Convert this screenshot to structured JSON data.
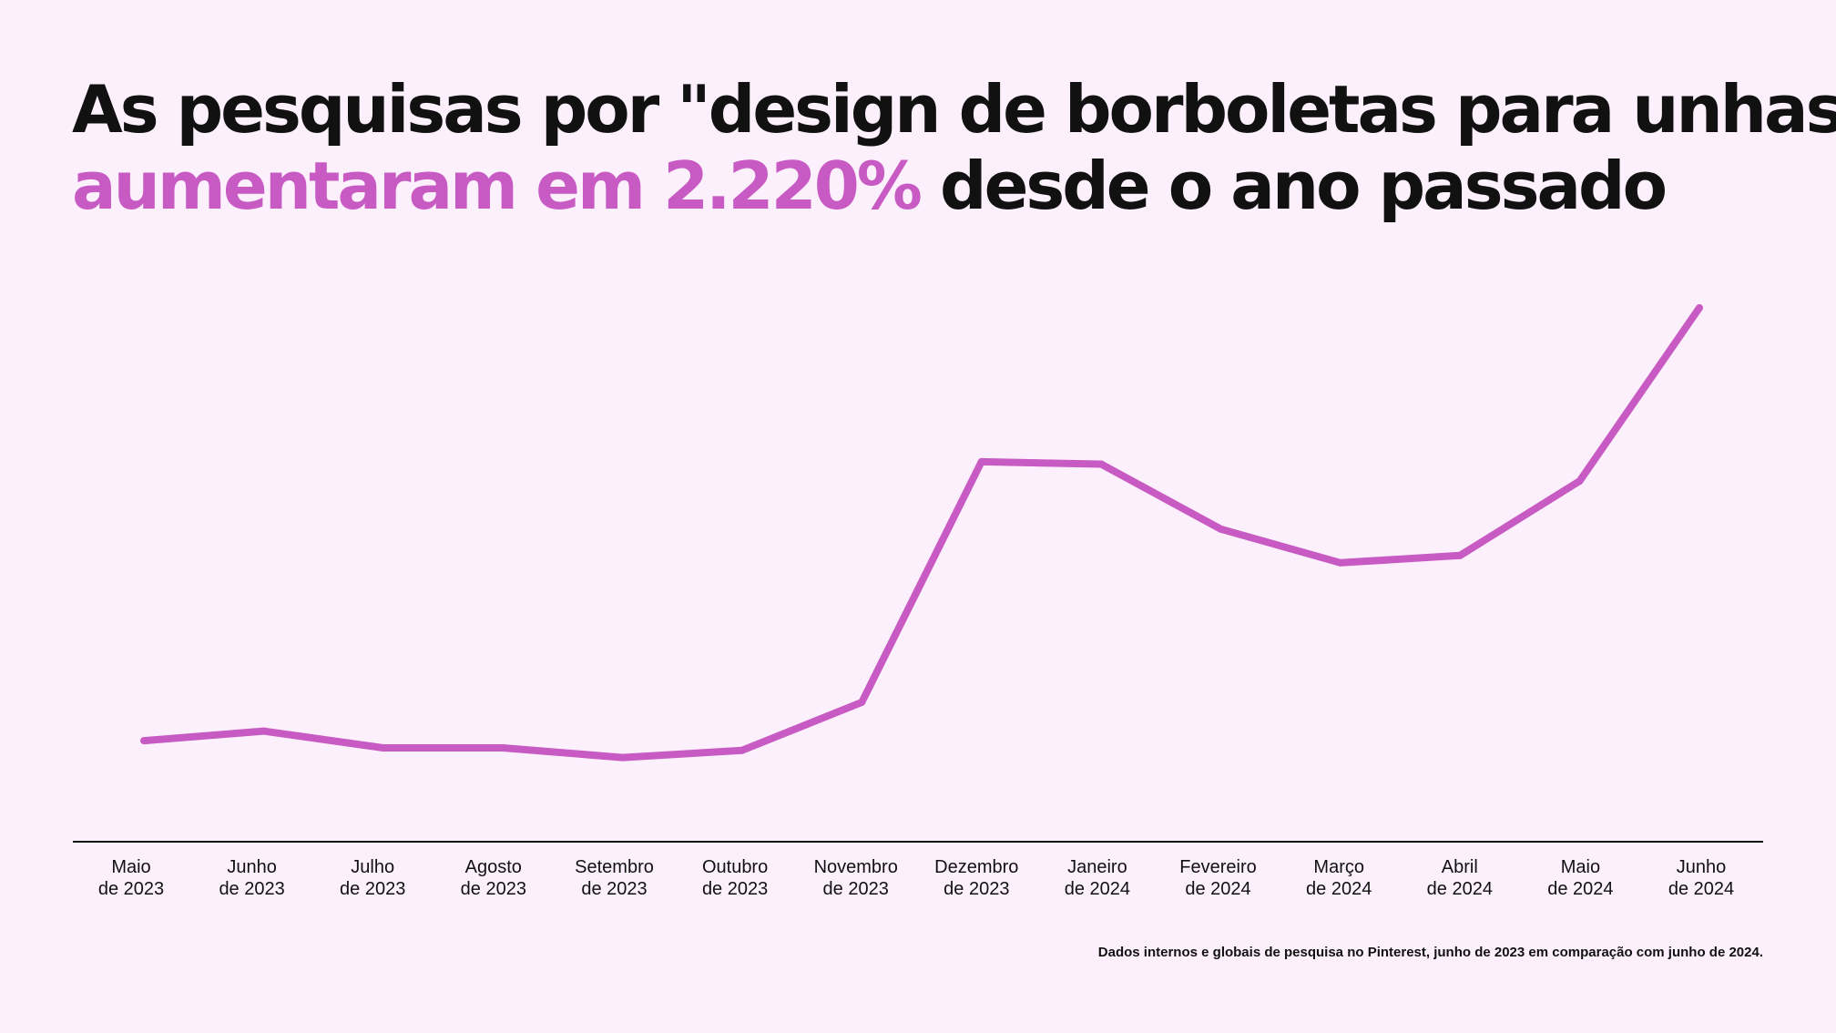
{
  "title": {
    "line1": "As pesquisas por \"design de borboletas para unhas\"",
    "line2_highlight": "aumentaram em 2.220%",
    "line2_rest": "desde o ano passado"
  },
  "colors": {
    "background": "#fdf0fd",
    "accent": "#c85bc3",
    "text": "#111111",
    "axis": "#111111"
  },
  "chart_data": {
    "type": "line",
    "categories": [
      [
        "Maio",
        "de 2023"
      ],
      [
        "Junho",
        "de 2023"
      ],
      [
        "Julho",
        "de 2023"
      ],
      [
        "Agosto",
        "de 2023"
      ],
      [
        "Setembro",
        "de 2023"
      ],
      [
        "Outubro",
        "de 2023"
      ],
      [
        "Novembro",
        "de 2023"
      ],
      [
        "Dezembro",
        "de 2023"
      ],
      [
        "Janeiro",
        "de 2024"
      ],
      [
        "Fevereiro",
        "de 2024"
      ],
      [
        "Março",
        "de 2024"
      ],
      [
        "Abril",
        "de 2024"
      ],
      [
        "Maio",
        "de 2024"
      ],
      [
        "Junho",
        "de 2024"
      ]
    ],
    "values": [
      21,
      23,
      19.5,
      19.5,
      17.5,
      19,
      29,
      79,
      78.5,
      65,
      58,
      59.5,
      75,
      111
    ],
    "ylim": [
      0,
      125
    ],
    "grid": false,
    "legend": false,
    "y_axis_labels": false
  },
  "footnote": "Dados internos e globais de pesquisa no Pinterest, junho de 2023 em comparação com junho de 2024."
}
